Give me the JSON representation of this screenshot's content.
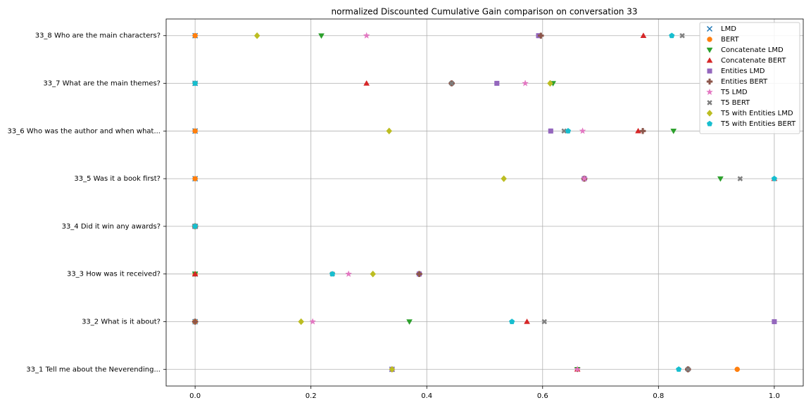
{
  "chart_data": {
    "type": "scatter",
    "title": "normalized Discounted Cumulative Gain comparison on conversation 33",
    "categories": [
      "33_1 Tell me about the Neverending...",
      "33_2 What is it about?",
      "33_3 How was it received?",
      "33_4 Did it win any awards?",
      "33_5 Was it a book first?",
      "33_6 Who was the author and when what...",
      "33_7 What are the main themes?",
      "33_8 Who are the main characters?"
    ],
    "xlim": [
      -0.05,
      1.05
    ],
    "xticks": [
      {
        "value": 0,
        "label": "0.0"
      },
      0.2,
      0.4,
      0.6,
      0.8,
      {
        "value": 1,
        "label": "1.0"
      }
    ],
    "grid": true,
    "legend": "upper right",
    "series": [
      {
        "name": "LMD",
        "color": "#1f77b4",
        "marker": "x",
        "values": [
          0.34,
          0,
          0,
          0,
          0,
          0,
          0,
          0
        ]
      },
      {
        "name": "BERT",
        "color": "#ff7f0e",
        "marker": "o",
        "values": [
          0.936,
          0,
          0,
          0,
          0,
          0,
          0,
          0
        ]
      },
      {
        "name": "Concatenate LMD",
        "color": "#2ca02c",
        "marker": "v",
        "values": [
          0.66,
          0.37,
          0,
          0,
          0.907,
          0.826,
          0.618,
          0.218
        ]
      },
      {
        "name": "Concatenate BERT",
        "color": "#d62728",
        "marker": "^",
        "values": [
          0.66,
          0.573,
          0,
          0,
          1.0,
          0.765,
          0.296,
          0.774
        ]
      },
      {
        "name": "Entities LMD",
        "color": "#9467bd",
        "marker": "s",
        "values": [
          0.34,
          1.0,
          0.387,
          0,
          0.672,
          0.614,
          0.521,
          0.593
        ]
      },
      {
        "name": "Entities BERT",
        "color": "#8c564b",
        "marker": "P",
        "values": [
          0.851,
          0,
          0.387,
          0,
          0.672,
          0.773,
          0.443,
          0.597
        ]
      },
      {
        "name": "T5 LMD",
        "color": "#e377c2",
        "marker": "*",
        "values": [
          0.66,
          0.203,
          0.265,
          0,
          0.672,
          0.669,
          0.57,
          0.296
        ]
      },
      {
        "name": "T5 BERT",
        "color": "#7f7f7f",
        "marker": "X",
        "values": [
          0.851,
          0.603,
          0.237,
          0,
          0.941,
          0.637,
          0.443,
          0.841
        ]
      },
      {
        "name": "T5 with Entities LMD",
        "color": "#bcbd22",
        "marker": "D",
        "values": [
          0.34,
          0.183,
          0.307,
          0,
          0.533,
          0.335,
          0.613,
          0.107
        ]
      },
      {
        "name": "T5 with Entities BERT",
        "color": "#17becf",
        "marker": "p",
        "values": [
          0.835,
          0.547,
          0.237,
          0,
          1.0,
          0.644,
          0,
          0.823
        ]
      }
    ]
  }
}
